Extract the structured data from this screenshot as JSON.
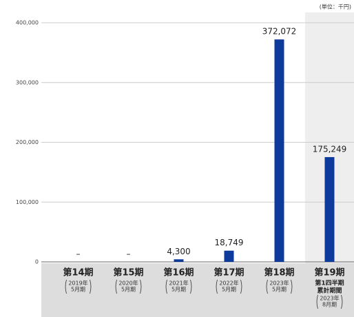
{
  "chart_data": {
    "type": "bar",
    "unit_note": "(単位：千円)",
    "categories": [
      "第14期",
      "第15期",
      "第16期",
      "第17期",
      "第18期",
      "第19期"
    ],
    "category_details": [
      {
        "period": [
          "2019年",
          "5月期"
        ]
      },
      {
        "period": [
          "2020年",
          "5月期"
        ]
      },
      {
        "period": [
          "2021年",
          "5月期"
        ]
      },
      {
        "period": [
          "2022年",
          "5月期"
        ]
      },
      {
        "period": [
          "2023年",
          "5月期"
        ]
      },
      {
        "heading": [
          "第1四半期",
          "累計期間"
        ],
        "period": [
          "2023年",
          "8月期"
        ]
      }
    ],
    "values": [
      null,
      null,
      4300,
      18749,
      372072,
      175249
    ],
    "value_labels": [
      "–",
      "–",
      "4,300",
      "18,749",
      "372,072",
      "175,249"
    ],
    "color": "#0d3a9b",
    "ylim": [
      0,
      400000
    ],
    "yticks": [
      0,
      {
        "value": 100000,
        "label": "100,000"
      },
      {
        "value": 200000,
        "label": "200,000"
      },
      {
        "value": 300000,
        "label": "300,000"
      },
      {
        "value": 400000,
        "label": "400,000"
      }
    ],
    "grid": true
  }
}
